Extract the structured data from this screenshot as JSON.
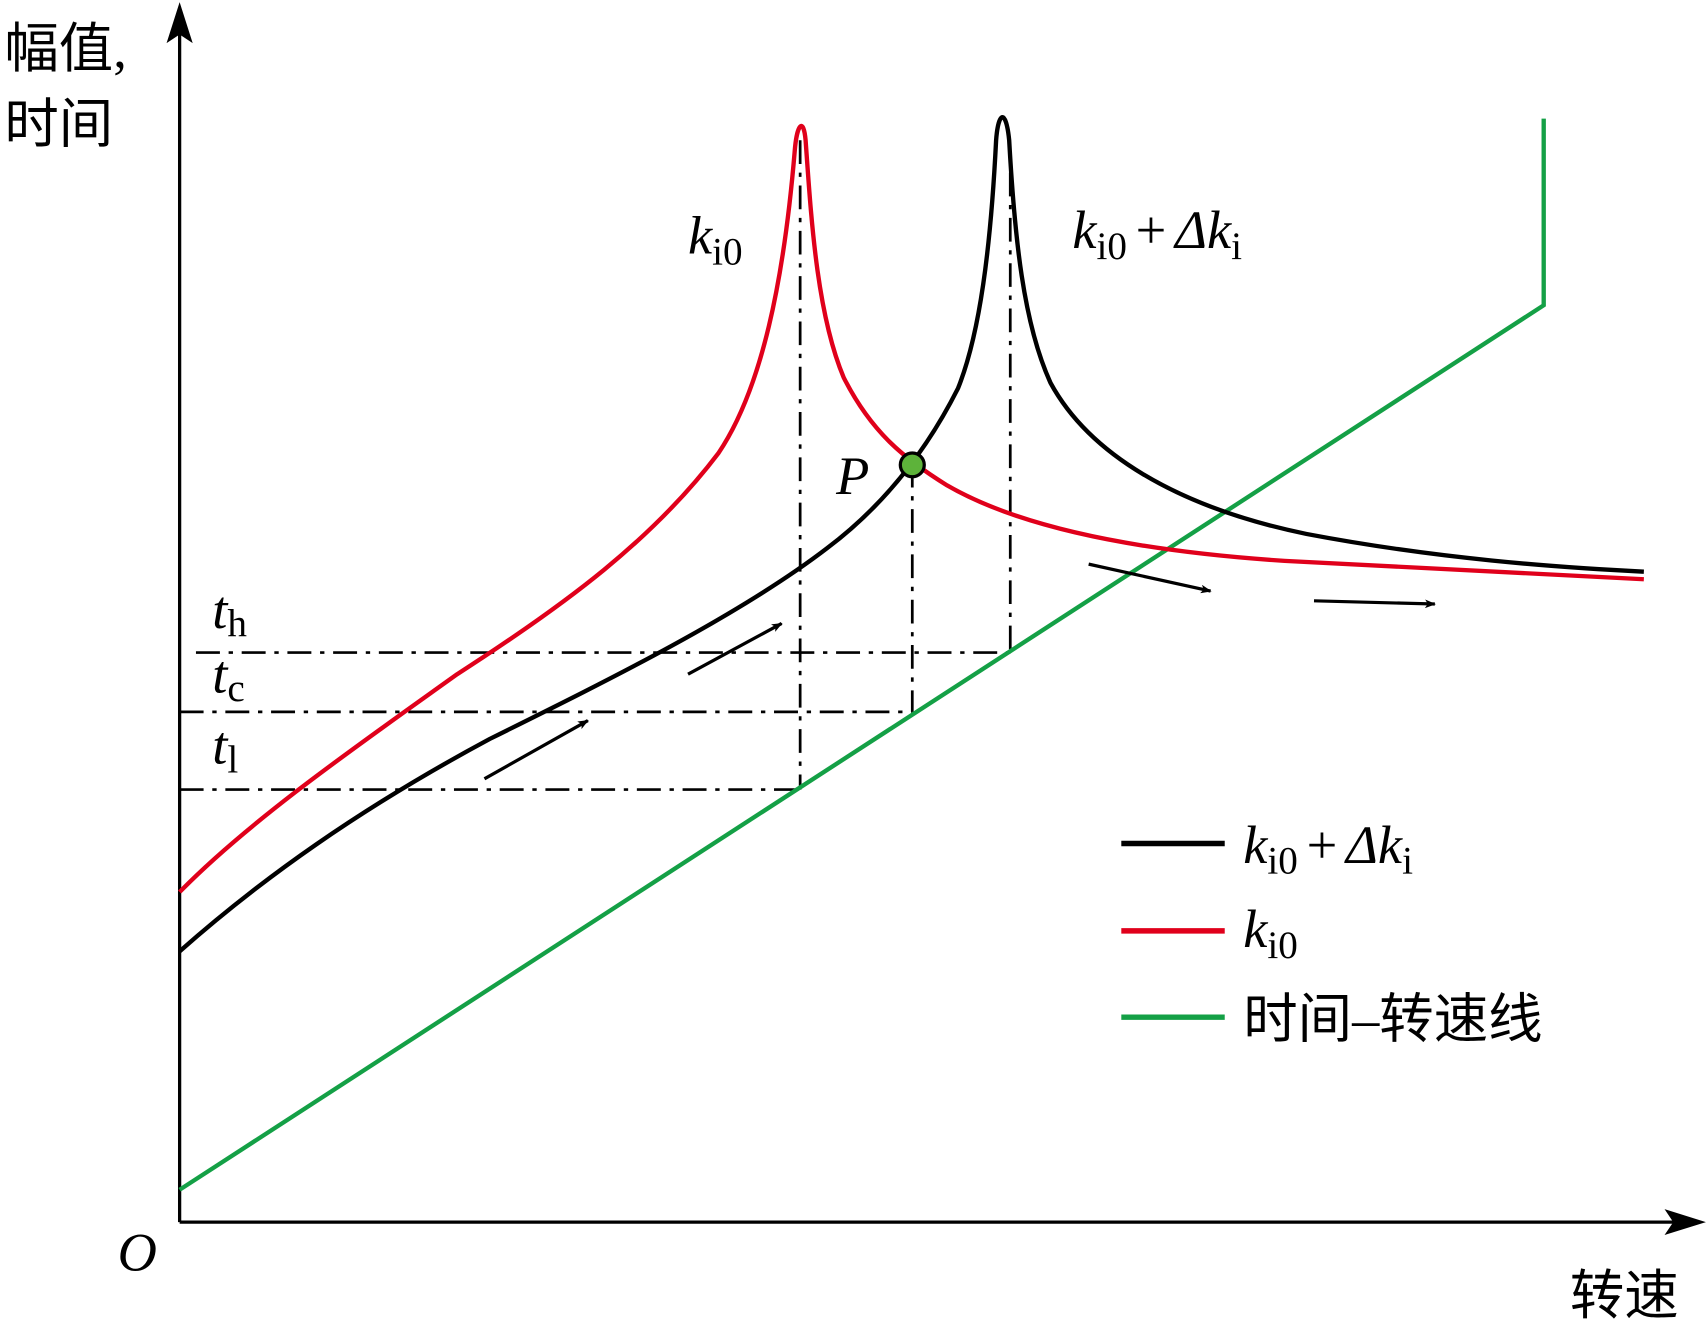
{
  "y_axis_label": [
    "幅值,",
    "时间"
  ],
  "x_axis_label": "转速",
  "origin": "O",
  "point": "P",
  "levels": [
    {
      "base": "t",
      "sub": "h"
    },
    {
      "base": "t",
      "sub": "c"
    },
    {
      "base": "t",
      "sub": "l"
    }
  ],
  "labels": {
    "black": {
      "k": "k",
      "k_sub": "i0",
      "plus": "+",
      "dk": "Δk",
      "dk_sub": "i"
    },
    "red": {
      "k": "k",
      "k_sub": "i0"
    },
    "green": "时间–转速线"
  }
}
